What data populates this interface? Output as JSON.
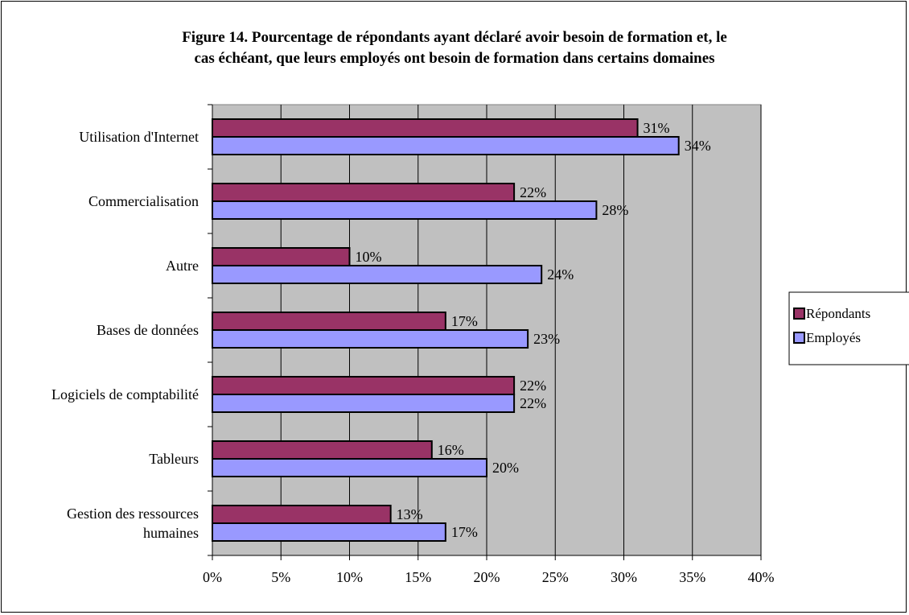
{
  "chart_data": {
    "type": "bar",
    "orientation": "horizontal",
    "title": "Figure 14. Pourcentage de répondants ayant déclaré avoir besoin de formation et, le cas échéant, que leurs employés ont besoin de formation dans certains domaines",
    "title_lines": [
      "Figure 14. Pourcentage de répondants ayant déclaré avoir besoin de formation et, le",
      "cas échéant, que leurs employés ont besoin de formation dans certains domaines"
    ],
    "categories": [
      "Utilisation d'Internet",
      "Commercialisation",
      "Autre",
      "Bases de données",
      "Logiciels de comptabilité",
      "Tableurs",
      "Gestion des ressources humaines"
    ],
    "category_label_lines": [
      [
        "Utilisation d'Internet"
      ],
      [
        "Commercialisation"
      ],
      [
        "Autre"
      ],
      [
        "Bases de données"
      ],
      [
        "Logiciels de comptabilité"
      ],
      [
        "Tableurs"
      ],
      [
        "Gestion des ressources",
        "humaines"
      ]
    ],
    "series": [
      {
        "name": "Répondants",
        "values": [
          31,
          22,
          10,
          17,
          22,
          16,
          13
        ],
        "color": "#993366"
      },
      {
        "name": "Employés",
        "values": [
          34,
          28,
          24,
          23,
          22,
          20,
          17
        ],
        "color": "#9999ff"
      }
    ],
    "value_suffix": "%",
    "xlim": [
      0,
      40
    ],
    "xticks": [
      0,
      5,
      10,
      15,
      20,
      25,
      30,
      35,
      40
    ],
    "xtick_labels": [
      "0%",
      "5%",
      "10%",
      "15%",
      "20%",
      "25%",
      "30%",
      "35%",
      "40%"
    ],
    "plot_background": "#c0c0c0",
    "grid": true,
    "legend_position": "right"
  }
}
